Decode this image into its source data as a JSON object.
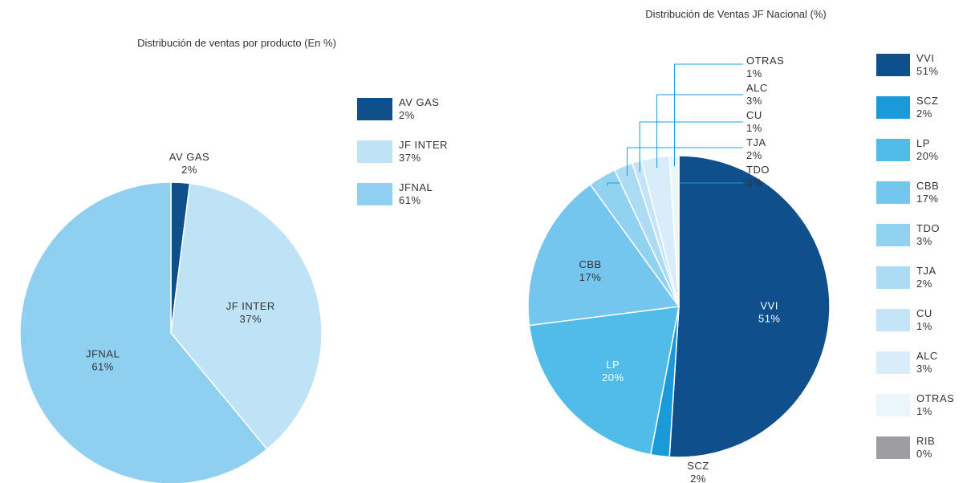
{
  "chart_data": [
    {
      "type": "pie",
      "title": "Distribución de ventas por producto (En %)",
      "categories": [
        "AV GAS",
        "JF INTER",
        "JFNAL"
      ],
      "values": [
        2,
        37,
        61
      ],
      "labels": [
        "2%",
        "37%",
        "61%"
      ],
      "colors": [
        "#0f4f8c",
        "#bfe3f6",
        "#8fd0f0"
      ],
      "legend": "right"
    },
    {
      "type": "pie",
      "title": "Distribución de Ventas JF Nacional (%)",
      "categories": [
        "VVI",
        "SCZ",
        "LP",
        "CBB",
        "TDO",
        "TJA",
        "CU",
        "ALC",
        "OTRAS",
        "RIB"
      ],
      "values": [
        51,
        2,
        20,
        17,
        3,
        2,
        1,
        3,
        1,
        0
      ],
      "labels": [
        "51%",
        "2%",
        "20%",
        "17%",
        "3%",
        "2%",
        "1%",
        "3%",
        "1%",
        "0%"
      ],
      "colors": [
        "#0f4f8c",
        "#1a9ad9",
        "#52bce9",
        "#74c6ee",
        "#92d2f1",
        "#acdcf4",
        "#c4e5f7",
        "#d8edf9",
        "#ebf5fc",
        "#9e9ea2"
      ],
      "legend": "right"
    }
  ]
}
